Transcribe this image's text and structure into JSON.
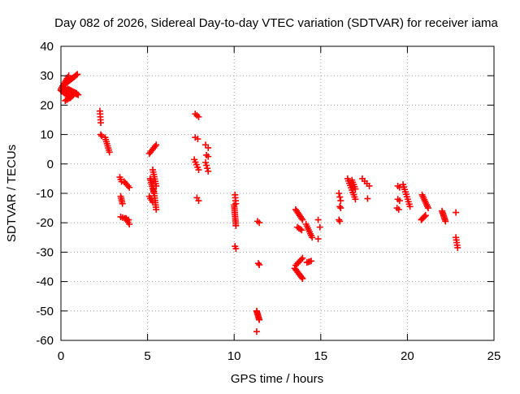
{
  "chart_data": {
    "type": "scatter",
    "title": "Day 082 of 2026, Sidereal Day-to-day VTEC variation (SDTVAR) for receiver iama",
    "xlabel": "GPS time / hours",
    "ylabel": "SDTVAR / TECUs",
    "xlim": [
      0,
      25
    ],
    "ylim": [
      -60,
      40
    ],
    "xticks": [
      0,
      5,
      10,
      15,
      20,
      25
    ],
    "yticks": [
      -60,
      -50,
      -40,
      -30,
      -20,
      -10,
      0,
      10,
      20,
      30,
      40
    ],
    "grid": true,
    "marker": "plus",
    "color": "#ff0000",
    "segments": [
      {
        "x0": 0.0,
        "x1": 0.45,
        "y0": 25.5,
        "y1": 30.0,
        "n": 10
      },
      {
        "x0": 0.1,
        "x1": 0.95,
        "y0": 26.5,
        "y1": 30.5,
        "n": 14
      },
      {
        "x0": 0.0,
        "x1": 0.55,
        "y0": 25.0,
        "y1": 22.5,
        "n": 10
      },
      {
        "x0": 0.2,
        "x1": 1.0,
        "y0": 25.5,
        "y1": 23.5,
        "n": 12
      },
      {
        "x0": 0.4,
        "x1": 0.9,
        "y0": 25.5,
        "y1": 24.0,
        "n": 8
      },
      {
        "x0": 0.25,
        "x1": 0.65,
        "y0": 21.5,
        "y1": 23.0,
        "n": 6
      },
      {
        "x0": 2.25,
        "x1": 2.3,
        "y0": 18.0,
        "y1": 14.0,
        "n": 5
      },
      {
        "x0": 2.3,
        "x1": 2.35,
        "y0": 10.0,
        "y1": 9.5,
        "n": 2
      },
      {
        "x0": 2.55,
        "x1": 2.8,
        "y0": 9.0,
        "y1": 4.0,
        "n": 8
      },
      {
        "x0": 3.4,
        "x1": 3.5,
        "y0": -4.5,
        "y1": -6.0,
        "n": 3
      },
      {
        "x0": 3.45,
        "x1": 3.55,
        "y0": -11.0,
        "y1": -13.5,
        "n": 5
      },
      {
        "x0": 3.45,
        "x1": 3.9,
        "y0": -18.0,
        "y1": -19.0,
        "n": 5
      },
      {
        "x0": 3.65,
        "x1": 3.95,
        "y0": -6.0,
        "y1": -8.0,
        "n": 5
      },
      {
        "x0": 3.75,
        "x1": 3.95,
        "y0": -18.5,
        "y1": -20.5,
        "n": 4
      },
      {
        "x0": 5.1,
        "x1": 5.5,
        "y0": 3.5,
        "y1": 6.5,
        "n": 7
      },
      {
        "x0": 5.15,
        "x1": 5.35,
        "y0": -5.0,
        "y1": -9.5,
        "n": 8
      },
      {
        "x0": 5.1,
        "x1": 5.3,
        "y0": -11.0,
        "y1": -13.0,
        "n": 4
      },
      {
        "x0": 5.3,
        "x1": 5.5,
        "y0": -2.0,
        "y1": -7.5,
        "n": 8
      },
      {
        "x0": 5.35,
        "x1": 5.5,
        "y0": -8.5,
        "y1": -15.5,
        "n": 10
      },
      {
        "x0": 7.75,
        "x1": 7.95,
        "y0": 17.0,
        "y1": 16.0,
        "n": 3
      },
      {
        "x0": 7.75,
        "x1": 7.9,
        "y0": 9.0,
        "y1": 8.5,
        "n": 2
      },
      {
        "x0": 7.7,
        "x1": 7.95,
        "y0": 1.5,
        "y1": -2.0,
        "n": 5
      },
      {
        "x0": 7.85,
        "x1": 7.95,
        "y0": -11.5,
        "y1": -12.5,
        "n": 2
      },
      {
        "x0": 8.35,
        "x1": 8.5,
        "y0": 6.5,
        "y1": 5.5,
        "n": 2
      },
      {
        "x0": 8.4,
        "x1": 8.5,
        "y0": 3.0,
        "y1": 2.5,
        "n": 2
      },
      {
        "x0": 8.35,
        "x1": 8.5,
        "y0": 0.5,
        "y1": -2.5,
        "n": 4
      },
      {
        "x0": 10.05,
        "x1": 10.1,
        "y0": -10.5,
        "y1": -13.5,
        "n": 4
      },
      {
        "x0": 10.0,
        "x1": 10.1,
        "y0": -14.0,
        "y1": -21.0,
        "n": 12
      },
      {
        "x0": 10.05,
        "x1": 10.1,
        "y0": -28.0,
        "y1": -28.8,
        "n": 2
      },
      {
        "x0": 11.35,
        "x1": 11.45,
        "y0": -19.5,
        "y1": -20.0,
        "n": 2
      },
      {
        "x0": 11.4,
        "x1": 11.45,
        "y0": -33.8,
        "y1": -34.3,
        "n": 2
      },
      {
        "x0": 11.3,
        "x1": 11.45,
        "y0": -50.0,
        "y1": -53.0,
        "n": 8
      },
      {
        "x0": 11.3,
        "x1": 11.3,
        "y0": -57.0,
        "y1": -57.0,
        "n": 1
      },
      {
        "x0": 13.55,
        "x1": 13.95,
        "y0": -15.5,
        "y1": -19.0,
        "n": 8
      },
      {
        "x0": 13.65,
        "x1": 13.9,
        "y0": -21.5,
        "y1": -22.5,
        "n": 4
      },
      {
        "x0": 13.5,
        "x1": 13.95,
        "y0": -35.5,
        "y1": -39.0,
        "n": 9
      },
      {
        "x0": 13.55,
        "x1": 13.95,
        "y0": -34.5,
        "y1": -32.0,
        "n": 6
      },
      {
        "x0": 14.15,
        "x1": 14.5,
        "y0": -20.5,
        "y1": -25.0,
        "n": 8
      },
      {
        "x0": 14.2,
        "x1": 14.45,
        "y0": -33.5,
        "y1": -33.0,
        "n": 4
      },
      {
        "x0": 14.85,
        "x1": 14.95,
        "y0": -19.0,
        "y1": -21.5,
        "n": 2
      },
      {
        "x0": 14.85,
        "x1": 14.9,
        "y0": -25.5,
        "y1": -25.5,
        "n": 1
      },
      {
        "x0": 16.05,
        "x1": 16.15,
        "y0": -10.0,
        "y1": -12.5,
        "n": 3
      },
      {
        "x0": 16.1,
        "x1": 16.15,
        "y0": -14.5,
        "y1": -15.0,
        "n": 2
      },
      {
        "x0": 16.05,
        "x1": 16.1,
        "y0": -19.0,
        "y1": -19.5,
        "n": 2
      },
      {
        "x0": 16.55,
        "x1": 17.0,
        "y0": -5.0,
        "y1": -12.0,
        "n": 10
      },
      {
        "x0": 16.8,
        "x1": 17.0,
        "y0": -5.5,
        "y1": -8.5,
        "n": 5
      },
      {
        "x0": 17.4,
        "x1": 17.8,
        "y0": -5.0,
        "y1": -7.5,
        "n": 4
      },
      {
        "x0": 17.7,
        "x1": 17.7,
        "y0": -11.8,
        "y1": -11.8,
        "n": 1
      },
      {
        "x0": 19.45,
        "x1": 19.55,
        "y0": -7.5,
        "y1": -8.0,
        "n": 2
      },
      {
        "x0": 19.45,
        "x1": 19.55,
        "y0": -12.0,
        "y1": -12.5,
        "n": 2
      },
      {
        "x0": 19.4,
        "x1": 19.5,
        "y0": -15.0,
        "y1": -15.5,
        "n": 2
      },
      {
        "x0": 19.75,
        "x1": 20.15,
        "y0": -7.0,
        "y1": -14.5,
        "n": 10
      },
      {
        "x0": 20.85,
        "x1": 21.2,
        "y0": -10.5,
        "y1": -15.0,
        "n": 9
      },
      {
        "x0": 20.8,
        "x1": 21.05,
        "y0": -19.0,
        "y1": -17.5,
        "n": 6
      },
      {
        "x0": 22.0,
        "x1": 22.2,
        "y0": -16.0,
        "y1": -19.5,
        "n": 8
      },
      {
        "x0": 22.8,
        "x1": 22.85,
        "y0": -16.5,
        "y1": -16.5,
        "n": 1
      },
      {
        "x0": 22.8,
        "x1": 22.9,
        "y0": -25.0,
        "y1": -28.5,
        "n": 5
      }
    ]
  }
}
